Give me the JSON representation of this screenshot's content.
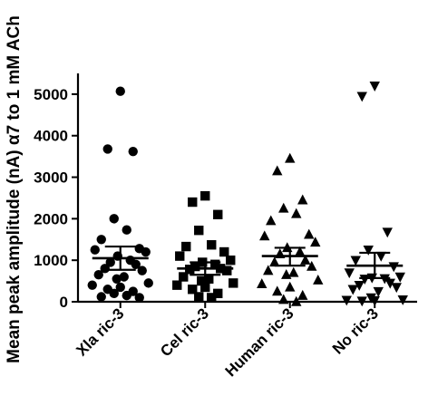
{
  "chart_data": {
    "type": "scatter",
    "title": "",
    "xlabel": "",
    "ylabel": "Mean peak amplitude (nA) α7 to 1 mM ACh",
    "ylim": [
      0,
      5500
    ],
    "yticks": [
      0,
      1000,
      2000,
      3000,
      4000,
      5000
    ],
    "grid": false,
    "categories": [
      "Xla ric-3",
      "Cel ric-3",
      "Human ric-3",
      "No ric-3"
    ],
    "series": [
      {
        "marker": "circle",
        "mean": 1050,
        "error": [
          770,
          1330
        ],
        "values": [
          5070,
          3680,
          3620,
          2000,
          1730,
          1500,
          1280,
          1250,
          1200,
          1100,
          1000,
          950,
          900,
          800,
          750,
          650,
          600,
          550,
          450,
          400,
          350,
          300,
          250,
          200,
          150,
          120,
          100
        ]
      },
      {
        "marker": "square",
        "mean": 800,
        "error": [
          650,
          950
        ],
        "values": [
          2550,
          2400,
          2100,
          1720,
          1370,
          1330,
          1200,
          1100,
          1000,
          950,
          900,
          850,
          800,
          780,
          750,
          600,
          550,
          500,
          450,
          400,
          350,
          300,
          200,
          120,
          100
        ]
      },
      {
        "marker": "triangle-up",
        "mean": 1100,
        "error": [
          870,
          1300
        ],
        "values": [
          3450,
          3150,
          2450,
          2250,
          2120,
          1950,
          1620,
          1580,
          1430,
          1300,
          1200,
          1150,
          1000,
          950,
          850,
          750,
          700,
          650,
          520,
          430,
          350,
          250,
          150,
          50,
          0
        ]
      },
      {
        "marker": "triangle-down",
        "mean": 870,
        "error": [
          570,
          1180
        ],
        "values": [
          5200,
          4950,
          1680,
          1250,
          1100,
          1000,
          850,
          700,
          600,
          580,
          560,
          550,
          450,
          400,
          350,
          300,
          250,
          100,
          50,
          40,
          30,
          20
        ]
      }
    ]
  }
}
